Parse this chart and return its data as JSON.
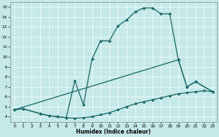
{
  "xlabel": "Humidex (Indice chaleur)",
  "bg_color": "#c5e8e8",
  "line_color": "#1e6b6b",
  "markersize": 2.5,
  "linewidth": 1.0,
  "xlim": [
    -0.5,
    23.5
  ],
  "ylim": [
    3.5,
    15.5
  ],
  "yticks": [
    4,
    5,
    6,
    7,
    8,
    9,
    10,
    11,
    12,
    13,
    14,
    15
  ],
  "xticks": [
    0,
    1,
    2,
    3,
    4,
    5,
    6,
    7,
    8,
    9,
    10,
    11,
    12,
    13,
    14,
    15,
    16,
    17,
    18,
    19,
    20,
    21,
    22,
    23
  ],
  "line1_x": [
    0,
    1,
    3,
    4,
    5,
    6,
    7,
    8,
    9,
    10,
    11,
    12,
    13,
    14,
    15,
    16,
    17,
    18,
    19,
    20,
    21,
    23
  ],
  "line1_y": [
    4.7,
    4.8,
    4.3,
    4.1,
    4.0,
    3.9,
    7.6,
    5.2,
    9.8,
    11.6,
    11.6,
    13.1,
    13.7,
    14.5,
    14.9,
    14.9,
    14.3,
    14.3,
    9.7,
    7.0,
    7.5,
    6.5
  ],
  "line2_x": [
    0,
    1,
    3,
    4,
    5,
    6,
    7,
    8,
    9,
    10,
    11,
    12,
    13,
    14,
    15,
    16,
    17,
    18,
    19,
    20,
    21,
    22,
    23
  ],
  "line2_y": [
    4.7,
    4.8,
    4.3,
    4.1,
    4.0,
    3.9,
    3.85,
    3.9,
    4.0,
    4.2,
    4.4,
    4.7,
    5.0,
    5.3,
    5.5,
    5.7,
    5.9,
    6.1,
    6.3,
    6.4,
    6.5,
    6.6,
    6.5
  ],
  "line3_x": [
    0,
    19,
    20,
    21,
    23
  ],
  "line3_y": [
    4.7,
    9.7,
    7.0,
    7.5,
    6.5
  ]
}
